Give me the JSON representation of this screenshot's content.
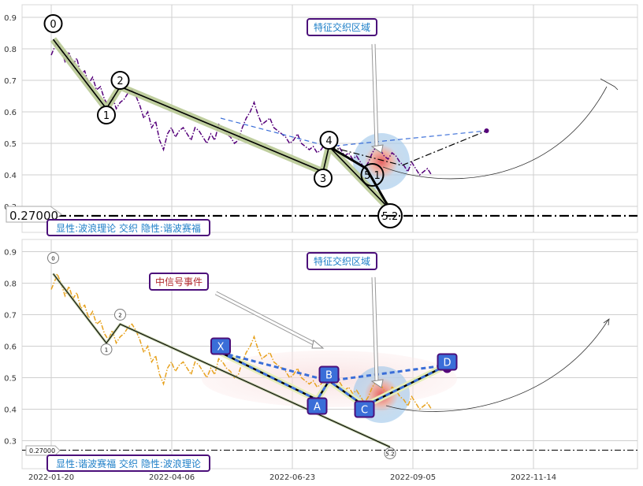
{
  "colors": {
    "grid": "#cfcfcf",
    "frame": "#d8d8d8",
    "purple": "#55007a",
    "orange": "#e7a21e",
    "wave": "#b8c994",
    "label_box": "#4b0f7a",
    "label_text": "#1e7fc8",
    "event_text": "#b0282d",
    "blue_marker": "#3a6ed8",
    "dash_blue": "#3a6ed8"
  },
  "chart_data": [
    {
      "type": "line",
      "panel": "top",
      "yticks": [
        0.9,
        0.8,
        0.7,
        0.6,
        0.5,
        0.4,
        0.3
      ],
      "ylim": [
        0.23,
        0.955
      ],
      "series": [
        {
          "role": "price",
          "style": "dashdot",
          "color": "purple",
          "values": [
            [
              0,
              0.78
            ],
            [
              2,
              0.81
            ],
            [
              3,
              0.83
            ],
            [
              5,
              0.8
            ],
            [
              7,
              0.76
            ],
            [
              9,
              0.79
            ],
            [
              11,
              0.75
            ],
            [
              13,
              0.77
            ],
            [
              15,
              0.72
            ],
            [
              17,
              0.73
            ],
            [
              19,
              0.69
            ],
            [
              21,
              0.71
            ],
            [
              23,
              0.67
            ],
            [
              25,
              0.68
            ],
            [
              27,
              0.64
            ],
            [
              29,
              0.62
            ],
            [
              31,
              0.65
            ],
            [
              33,
              0.61
            ],
            [
              35,
              0.63
            ],
            [
              37,
              0.64
            ],
            [
              39,
              0.66
            ],
            [
              41,
              0.67
            ],
            [
              43,
              0.65
            ],
            [
              45,
              0.62
            ],
            [
              47,
              0.58
            ],
            [
              49,
              0.6
            ],
            [
              51,
              0.55
            ],
            [
              53,
              0.57
            ],
            [
              55,
              0.51
            ],
            [
              57,
              0.48
            ],
            [
              59,
              0.53
            ],
            [
              61,
              0.55
            ],
            [
              63,
              0.52
            ],
            [
              65,
              0.54
            ],
            [
              67,
              0.55
            ],
            [
              69,
              0.53
            ],
            [
              71,
              0.51
            ],
            [
              73,
              0.55
            ],
            [
              75,
              0.54
            ],
            [
              77,
              0.52
            ],
            [
              79,
              0.5
            ],
            [
              81,
              0.53
            ],
            [
              83,
              0.51
            ],
            [
              85,
              0.56
            ],
            [
              87,
              0.55
            ],
            [
              89,
              0.53
            ],
            [
              91,
              0.52
            ],
            [
              93,
              0.5
            ],
            [
              95,
              0.51
            ],
            [
              97,
              0.55
            ],
            [
              99,
              0.58
            ],
            [
              101,
              0.6
            ],
            [
              103,
              0.63
            ],
            [
              105,
              0.59
            ],
            [
              107,
              0.56
            ],
            [
              109,
              0.57
            ],
            [
              111,
              0.58
            ],
            [
              113,
              0.55
            ],
            [
              115,
              0.54
            ],
            [
              117,
              0.53
            ],
            [
              119,
              0.52
            ],
            [
              121,
              0.5
            ],
            [
              123,
              0.51
            ],
            [
              125,
              0.53
            ],
            [
              127,
              0.5
            ],
            [
              129,
              0.49
            ],
            [
              131,
              0.48
            ],
            [
              133,
              0.49
            ],
            [
              135,
              0.47
            ],
            [
              137,
              0.48
            ],
            [
              139,
              0.5
            ],
            [
              141,
              0.52
            ],
            [
              143,
              0.49
            ],
            [
              145,
              0.5
            ],
            [
              147,
              0.48
            ],
            [
              149,
              0.46
            ],
            [
              151,
              0.47
            ],
            [
              153,
              0.45
            ],
            [
              155,
              0.46
            ],
            [
              157,
              0.44
            ],
            [
              159,
              0.42
            ],
            [
              161,
              0.44
            ],
            [
              163,
              0.47
            ],
            [
              165,
              0.49
            ],
            [
              167,
              0.48
            ],
            [
              169,
              0.46
            ],
            [
              171,
              0.45
            ],
            [
              173,
              0.47
            ],
            [
              175,
              0.46
            ],
            [
              177,
              0.44
            ],
            [
              179,
              0.43
            ],
            [
              181,
              0.41
            ],
            [
              183,
              0.44
            ],
            [
              185,
              0.42
            ],
            [
              187,
              0.4
            ],
            [
              189,
              0.41
            ],
            [
              191,
              0.42
            ],
            [
              193,
              0.4
            ]
          ]
        },
        {
          "role": "wave",
          "values": [
            [
              1,
              0.83
            ],
            [
              28,
              0.61
            ],
            [
              35,
              0.68
            ],
            [
              138,
              0.41
            ],
            [
              141,
              0.49
            ],
            [
              172,
              0.29
            ]
          ]
        },
        {
          "role": "pattern",
          "style": "dashdot",
          "color": "black",
          "values": [
            [
              141,
              0.49
            ],
            [
              178,
              0.43
            ],
            [
              221,
              0.54
            ]
          ]
        },
        {
          "role": "pattern",
          "style": "solid",
          "color": "black",
          "values": [
            [
              141,
              0.49
            ],
            [
              160,
              0.42
            ],
            [
              172,
              0.29
            ]
          ]
        },
        {
          "role": "pattern",
          "style": "dashed",
          "color": "blue",
          "values": [
            [
              86,
              0.58
            ],
            [
              141,
              0.49
            ],
            [
              221,
              0.54
            ]
          ]
        }
      ],
      "wave_labels": [
        {
          "text": "0",
          "x": 1,
          "y": 0.88
        },
        {
          "text": "1",
          "x": 28,
          "y": 0.59
        },
        {
          "text": "2",
          "x": 35,
          "y": 0.7
        },
        {
          "text": "3",
          "x": 138,
          "y": 0.39
        },
        {
          "text": "4",
          "x": 141,
          "y": 0.51
        },
        {
          "text": "5.1",
          "x": 163,
          "y": 0.4
        },
        {
          "text": "5.2",
          "x": 172,
          "y": 0.27
        }
      ],
      "hline": {
        "value": 0.27,
        "label": "0.27000"
      },
      "annotation": "特征交织区域",
      "caption": "显性:波浪理论 交织 隐性:谐波赛福"
    },
    {
      "type": "line",
      "panel": "bottom",
      "yticks": [
        0.9,
        0.8,
        0.7,
        0.6,
        0.5,
        0.4,
        0.3
      ],
      "ylim": [
        0.23,
        0.955
      ],
      "xticks": [
        "2022-01-20",
        "2022-04-06",
        "2022-06-23",
        "2022-09-05",
        "2022-11-14"
      ],
      "series": [
        {
          "role": "price",
          "style": "dashdot",
          "color": "orange",
          "values": [
            [
              0,
              0.78
            ],
            [
              2,
              0.81
            ],
            [
              3,
              0.83
            ],
            [
              5,
              0.8
            ],
            [
              7,
              0.76
            ],
            [
              9,
              0.79
            ],
            [
              11,
              0.75
            ],
            [
              13,
              0.77
            ],
            [
              15,
              0.72
            ],
            [
              17,
              0.73
            ],
            [
              19,
              0.69
            ],
            [
              21,
              0.71
            ],
            [
              23,
              0.67
            ],
            [
              25,
              0.68
            ],
            [
              27,
              0.64
            ],
            [
              29,
              0.62
            ],
            [
              31,
              0.65
            ],
            [
              33,
              0.61
            ],
            [
              35,
              0.63
            ],
            [
              37,
              0.64
            ],
            [
              39,
              0.66
            ],
            [
              41,
              0.67
            ],
            [
              43,
              0.65
            ],
            [
              45,
              0.62
            ],
            [
              47,
              0.58
            ],
            [
              49,
              0.6
            ],
            [
              51,
              0.55
            ],
            [
              53,
              0.57
            ],
            [
              55,
              0.51
            ],
            [
              57,
              0.48
            ],
            [
              59,
              0.53
            ],
            [
              61,
              0.55
            ],
            [
              63,
              0.52
            ],
            [
              65,
              0.54
            ],
            [
              67,
              0.55
            ],
            [
              69,
              0.53
            ],
            [
              71,
              0.51
            ],
            [
              73,
              0.55
            ],
            [
              75,
              0.54
            ],
            [
              77,
              0.52
            ],
            [
              79,
              0.5
            ],
            [
              81,
              0.53
            ],
            [
              83,
              0.51
            ],
            [
              85,
              0.56
            ],
            [
              87,
              0.55
            ],
            [
              89,
              0.53
            ],
            [
              91,
              0.52
            ],
            [
              93,
              0.5
            ],
            [
              95,
              0.51
            ],
            [
              97,
              0.55
            ],
            [
              99,
              0.58
            ],
            [
              101,
              0.6
            ],
            [
              103,
              0.63
            ],
            [
              105,
              0.59
            ],
            [
              107,
              0.56
            ],
            [
              109,
              0.57
            ],
            [
              111,
              0.58
            ],
            [
              113,
              0.55
            ],
            [
              115,
              0.54
            ],
            [
              117,
              0.53
            ],
            [
              119,
              0.52
            ],
            [
              121,
              0.5
            ],
            [
              123,
              0.51
            ],
            [
              125,
              0.53
            ],
            [
              127,
              0.5
            ],
            [
              129,
              0.49
            ],
            [
              131,
              0.48
            ],
            [
              133,
              0.49
            ],
            [
              135,
              0.47
            ],
            [
              137,
              0.48
            ],
            [
              139,
              0.5
            ],
            [
              141,
              0.52
            ],
            [
              143,
              0.49
            ],
            [
              145,
              0.5
            ],
            [
              147,
              0.48
            ],
            [
              149,
              0.46
            ],
            [
              151,
              0.47
            ],
            [
              153,
              0.45
            ],
            [
              155,
              0.46
            ],
            [
              157,
              0.44
            ],
            [
              159,
              0.42
            ],
            [
              161,
              0.44
            ],
            [
              163,
              0.47
            ],
            [
              165,
              0.49
            ],
            [
              167,
              0.48
            ],
            [
              169,
              0.46
            ],
            [
              171,
              0.45
            ],
            [
              173,
              0.47
            ],
            [
              175,
              0.46
            ],
            [
              177,
              0.44
            ],
            [
              179,
              0.43
            ],
            [
              181,
              0.41
            ],
            [
              183,
              0.44
            ],
            [
              185,
              0.42
            ],
            [
              187,
              0.4
            ],
            [
              189,
              0.41
            ],
            [
              191,
              0.42
            ],
            [
              193,
              0.4
            ]
          ]
        },
        {
          "role": "wave",
          "values": [
            [
              1,
              0.83
            ],
            [
              28,
              0.61
            ],
            [
              35,
              0.67
            ],
            [
              172,
              0.28
            ]
          ]
        },
        {
          "role": "harmonic",
          "values": [
            [
              86,
              0.58
            ],
            [
              135,
              0.43
            ],
            [
              141,
              0.49
            ],
            [
              159,
              0.41
            ],
            [
              201,
              0.54
            ]
          ]
        },
        {
          "role": "pattern",
          "style": "dashed",
          "color": "blue",
          "values": [
            [
              86,
              0.58
            ],
            [
              141,
              0.49
            ],
            [
              201,
              0.54
            ]
          ]
        },
        {
          "role": "pattern",
          "style": "dashed",
          "color": "blue",
          "values": [
            [
              86,
              0.58
            ],
            [
              135,
              0.43
            ],
            [
              141,
              0.49
            ],
            [
              159,
              0.41
            ],
            [
              201,
              0.54
            ]
          ]
        }
      ],
      "wave_labels": [
        {
          "text": "0",
          "x": 1,
          "y": 0.88
        },
        {
          "text": "1",
          "x": 28,
          "y": 0.59
        },
        {
          "text": "2",
          "x": 35,
          "y": 0.7
        },
        {
          "text": "5.2",
          "x": 172,
          "y": 0.26
        }
      ],
      "point_labels": [
        {
          "text": "X",
          "x": 86,
          "y": 0.6
        },
        {
          "text": "A",
          "x": 135,
          "y": 0.41
        },
        {
          "text": "B",
          "x": 141,
          "y": 0.51
        },
        {
          "text": "C",
          "x": 159,
          "y": 0.4
        },
        {
          "text": "D",
          "x": 201,
          "y": 0.55
        }
      ],
      "hline": {
        "value": 0.27,
        "label": "0.27000"
      },
      "annotation": "特征交织区域",
      "event_label": "中信号事件",
      "caption": "显性:谐波赛福 交织 隐性:波浪理论"
    }
  ]
}
